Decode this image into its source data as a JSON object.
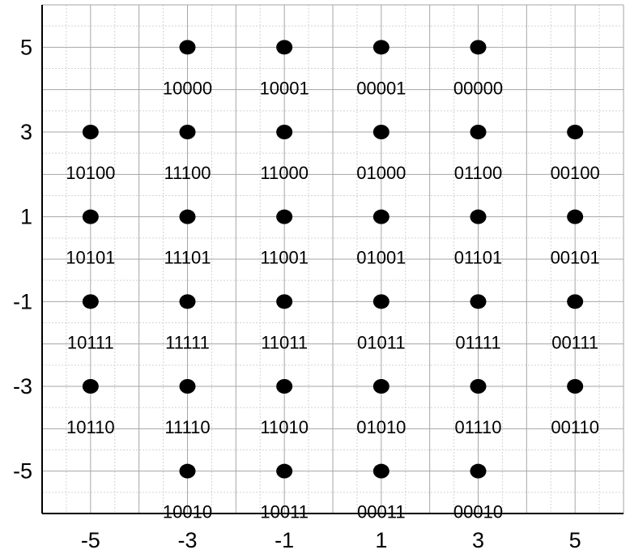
{
  "chart_data": {
    "type": "scatter",
    "title": "",
    "xlabel": "",
    "ylabel": "",
    "xlim": [
      -6,
      6
    ],
    "ylim": [
      -6,
      6
    ],
    "x_ticks": [
      "-5",
      "-3",
      "-1",
      "1",
      "3",
      "5"
    ],
    "y_ticks": [
      "5",
      "3",
      "1",
      "-1",
      "-3",
      "-5"
    ],
    "grid": true,
    "marker_color": "#000000",
    "points": [
      {
        "x": -3,
        "y": 5,
        "label": "10000"
      },
      {
        "x": -1,
        "y": 5,
        "label": "10001"
      },
      {
        "x": 1,
        "y": 5,
        "label": "00001"
      },
      {
        "x": 3,
        "y": 5,
        "label": "00000"
      },
      {
        "x": -5,
        "y": 3,
        "label": "10100"
      },
      {
        "x": -3,
        "y": 3,
        "label": "11100"
      },
      {
        "x": -1,
        "y": 3,
        "label": "11000"
      },
      {
        "x": 1,
        "y": 3,
        "label": "01000"
      },
      {
        "x": 3,
        "y": 3,
        "label": "01100"
      },
      {
        "x": 5,
        "y": 3,
        "label": "00100"
      },
      {
        "x": -5,
        "y": 1,
        "label": "10101"
      },
      {
        "x": -3,
        "y": 1,
        "label": "11101"
      },
      {
        "x": -1,
        "y": 1,
        "label": "11001"
      },
      {
        "x": 1,
        "y": 1,
        "label": "01001"
      },
      {
        "x": 3,
        "y": 1,
        "label": "01101"
      },
      {
        "x": 5,
        "y": 1,
        "label": "00101"
      },
      {
        "x": -5,
        "y": -1,
        "label": "10111"
      },
      {
        "x": -3,
        "y": -1,
        "label": "11111"
      },
      {
        "x": -1,
        "y": -1,
        "label": "11011"
      },
      {
        "x": 1,
        "y": -1,
        "label": "01011"
      },
      {
        "x": 3,
        "y": -1,
        "label": "01111"
      },
      {
        "x": 5,
        "y": -1,
        "label": "00111"
      },
      {
        "x": -5,
        "y": -3,
        "label": "10110"
      },
      {
        "x": -3,
        "y": -3,
        "label": "11110"
      },
      {
        "x": -1,
        "y": -3,
        "label": "11010"
      },
      {
        "x": 1,
        "y": -3,
        "label": "01010"
      },
      {
        "x": 3,
        "y": -3,
        "label": "01110"
      },
      {
        "x": 5,
        "y": -3,
        "label": "00110"
      },
      {
        "x": -3,
        "y": -5,
        "label": "10010"
      },
      {
        "x": -1,
        "y": -5,
        "label": "10011"
      },
      {
        "x": 1,
        "y": -5,
        "label": "00011"
      },
      {
        "x": 3,
        "y": -5,
        "label": "00010"
      }
    ]
  }
}
